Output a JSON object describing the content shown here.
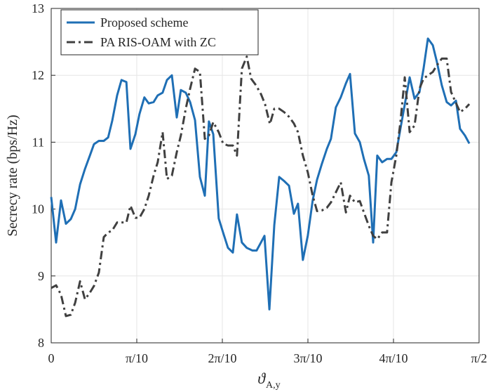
{
  "chart_data": {
    "type": "line",
    "ylabel": "Secrecy rate (bps/Hz)",
    "xlabel": "ϑ",
    "xlabel_sub": "A,y",
    "xlim": [
      0,
      1.5708
    ],
    "ylim": [
      8,
      13
    ],
    "xticks": [
      0,
      {
        "value": 0.31416,
        "label": "π/10"
      },
      {
        "value": 0.62832,
        "label": "2π/10"
      },
      {
        "value": 0.94248,
        "label": "3π/10"
      },
      {
        "value": 1.25664,
        "label": "4π/10"
      },
      {
        "value": 1.5708,
        "label": "π/2"
      }
    ],
    "yticks": [
      8,
      9,
      10,
      11,
      12,
      13
    ],
    "grid": true,
    "legend": "upper left",
    "series": [
      {
        "name": "Proposed scheme",
        "color": "#1f6fb5",
        "style": "solid",
        "x": [
          0,
          0.018,
          0.036,
          0.054,
          0.072,
          0.088,
          0.106,
          0.124,
          0.142,
          0.157,
          0.175,
          0.193,
          0.209,
          0.224,
          0.242,
          0.258,
          0.276,
          0.291,
          0.309,
          0.324,
          0.342,
          0.358,
          0.376,
          0.391,
          0.409,
          0.425,
          0.443,
          0.461,
          0.476,
          0.494,
          0.51,
          0.528,
          0.546,
          0.564,
          0.579,
          0.595,
          0.615,
          0.631,
          0.649,
          0.667,
          0.682,
          0.7,
          0.718,
          0.739,
          0.754,
          0.77,
          0.783,
          0.801,
          0.819,
          0.837,
          0.855,
          0.873,
          0.891,
          0.906,
          0.924,
          0.942,
          0.96,
          0.976,
          0.994,
          1.012,
          1.027,
          1.045,
          1.063,
          1.082,
          1.097,
          1.115,
          1.133,
          1.148,
          1.166,
          1.182,
          1.197,
          1.215,
          1.233,
          1.249,
          1.267,
          1.282,
          1.316,
          1.334,
          1.352,
          1.367,
          1.383,
          1.401,
          1.416,
          1.434,
          1.452,
          1.468,
          1.486,
          1.501,
          1.519,
          1.535
        ],
        "values": [
          10.18,
          9.5,
          10.13,
          9.78,
          9.85,
          10.0,
          10.37,
          10.6,
          10.8,
          10.97,
          11.02,
          11.02,
          11.07,
          11.32,
          11.7,
          11.93,
          11.9,
          10.9,
          11.12,
          11.42,
          11.67,
          11.58,
          11.6,
          11.7,
          11.74,
          11.93,
          12.0,
          11.37,
          11.78,
          11.74,
          11.6,
          11.33,
          10.48,
          10.2,
          11.31,
          11.12,
          9.86,
          9.65,
          9.42,
          9.35,
          9.92,
          9.5,
          9.42,
          9.38,
          9.38,
          9.5,
          9.6,
          8.5,
          9.76,
          10.48,
          10.42,
          10.35,
          9.93,
          10.08,
          9.24,
          9.6,
          10.13,
          10.44,
          10.68,
          10.9,
          11.05,
          11.52,
          11.67,
          11.88,
          12.02,
          11.13,
          11.0,
          10.75,
          10.5,
          9.5,
          10.8,
          10.7,
          10.75,
          10.75,
          10.85,
          11.2,
          11.97,
          11.65,
          11.75,
          12.1,
          12.55,
          12.45,
          12.2,
          11.85,
          11.6,
          11.55,
          11.62,
          11.2,
          11.1,
          10.98
        ]
      },
      {
        "name": "PA RIS-OAM with ZC",
        "color": "#404040",
        "style": "dashdot",
        "x": [
          0,
          0.018,
          0.036,
          0.054,
          0.072,
          0.088,
          0.106,
          0.124,
          0.142,
          0.157,
          0.175,
          0.193,
          0.209,
          0.224,
          0.242,
          0.258,
          0.276,
          0.291,
          0.309,
          0.324,
          0.342,
          0.358,
          0.376,
          0.391,
          0.409,
          0.425,
          0.443,
          0.461,
          0.476,
          0.494,
          0.51,
          0.528,
          0.546,
          0.564,
          0.579,
          0.595,
          0.615,
          0.631,
          0.649,
          0.667,
          0.682,
          0.7,
          0.718,
          0.734,
          0.752,
          0.77,
          0.785,
          0.803,
          0.819,
          0.837,
          0.855,
          0.873,
          0.891,
          0.906,
          0.924,
          0.942,
          0.96,
          0.976,
          0.994,
          1.012,
          1.027,
          1.045,
          1.063,
          1.082,
          1.097,
          1.115,
          1.133,
          1.148,
          1.166,
          1.182,
          1.197,
          1.215,
          1.233,
          1.249,
          1.267,
          1.282,
          1.298,
          1.316,
          1.334,
          1.352,
          1.367,
          1.383,
          1.401,
          1.416,
          1.434,
          1.452,
          1.468,
          1.501,
          1.519,
          1.535
        ],
        "values": [
          8.82,
          8.86,
          8.72,
          8.4,
          8.42,
          8.6,
          8.92,
          8.65,
          8.75,
          8.85,
          9.05,
          9.58,
          9.65,
          9.68,
          9.8,
          9.8,
          9.8,
          10.05,
          9.87,
          9.87,
          10.0,
          10.2,
          10.5,
          10.7,
          11.15,
          10.45,
          10.5,
          10.85,
          11.1,
          11.5,
          11.8,
          12.1,
          12.05,
          11.05,
          11.1,
          11.3,
          11.15,
          10.98,
          10.95,
          10.95,
          10.8,
          12.1,
          12.28,
          11.95,
          11.85,
          11.72,
          11.57,
          11.27,
          11.5,
          11.5,
          11.45,
          11.38,
          11.28,
          11.15,
          10.8,
          10.55,
          10.2,
          9.97,
          9.98,
          10.02,
          10.1,
          10.25,
          10.4,
          9.95,
          10.2,
          10.1,
          10.12,
          9.95,
          9.75,
          9.6,
          9.55,
          9.65,
          9.65,
          10.4,
          10.8,
          11.3,
          11.97,
          11.15,
          11.25,
          11.8,
          11.95,
          12.0,
          12.05,
          12.15,
          12.25,
          12.25,
          11.75,
          11.45,
          11.5,
          11.57
        ]
      }
    ]
  }
}
